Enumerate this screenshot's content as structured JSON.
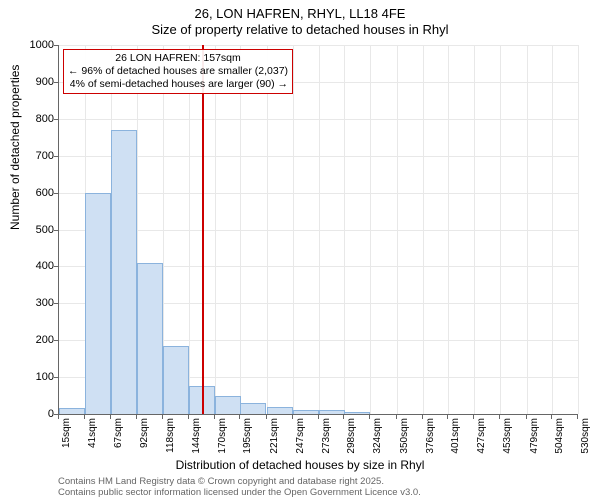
{
  "title": {
    "line1": "26, LON HAFREN, RHYL, LL18 4FE",
    "line2": "Size of property relative to detached houses in Rhyl"
  },
  "ylabel": "Number of detached properties",
  "xlabel": "Distribution of detached houses by size in Rhyl",
  "chart": {
    "type": "histogram",
    "background_color": "#ffffff",
    "grid_color": "#e8e8e8",
    "axis_color": "#666666",
    "bar_fill": "#cfe0f3",
    "bar_stroke": "#8bb3dd",
    "marker_color": "#cc0000",
    "ylim": [
      0,
      1000
    ],
    "ytick_step": 100,
    "yticks": [
      0,
      100,
      200,
      300,
      400,
      500,
      600,
      700,
      800,
      900,
      1000
    ],
    "xticks": [
      "15sqm",
      "41sqm",
      "67sqm",
      "92sqm",
      "118sqm",
      "144sqm",
      "170sqm",
      "195sqm",
      "221sqm",
      "247sqm",
      "273sqm",
      "298sqm",
      "324sqm",
      "350sqm",
      "376sqm",
      "401sqm",
      "427sqm",
      "453sqm",
      "479sqm",
      "504sqm",
      "530sqm"
    ],
    "bars": [
      {
        "x": 15,
        "value": 15
      },
      {
        "x": 41,
        "value": 600
      },
      {
        "x": 67,
        "value": 770
      },
      {
        "x": 92,
        "value": 410
      },
      {
        "x": 118,
        "value": 185
      },
      {
        "x": 144,
        "value": 75
      },
      {
        "x": 170,
        "value": 48
      },
      {
        "x": 195,
        "value": 30
      },
      {
        "x": 221,
        "value": 18
      },
      {
        "x": 247,
        "value": 12
      },
      {
        "x": 273,
        "value": 10
      },
      {
        "x": 298,
        "value": 5
      },
      {
        "x": 324,
        "value": 0
      },
      {
        "x": 350,
        "value": 0
      }
    ],
    "x_domain": [
      15,
      530
    ],
    "bar_width_sqm": 25.75,
    "marker_value_sqm": 157
  },
  "annotation": {
    "line1": "26 LON HAFREN: 157sqm",
    "line2": "← 96% of detached houses are smaller (2,037)",
    "line3": "4% of semi-detached houses are larger (90) →",
    "border_color": "#cc0000"
  },
  "footer": {
    "line1": "Contains HM Land Registry data © Crown copyright and database right 2025.",
    "line2": "Contains public sector information licensed under the Open Government Licence v3.0."
  }
}
